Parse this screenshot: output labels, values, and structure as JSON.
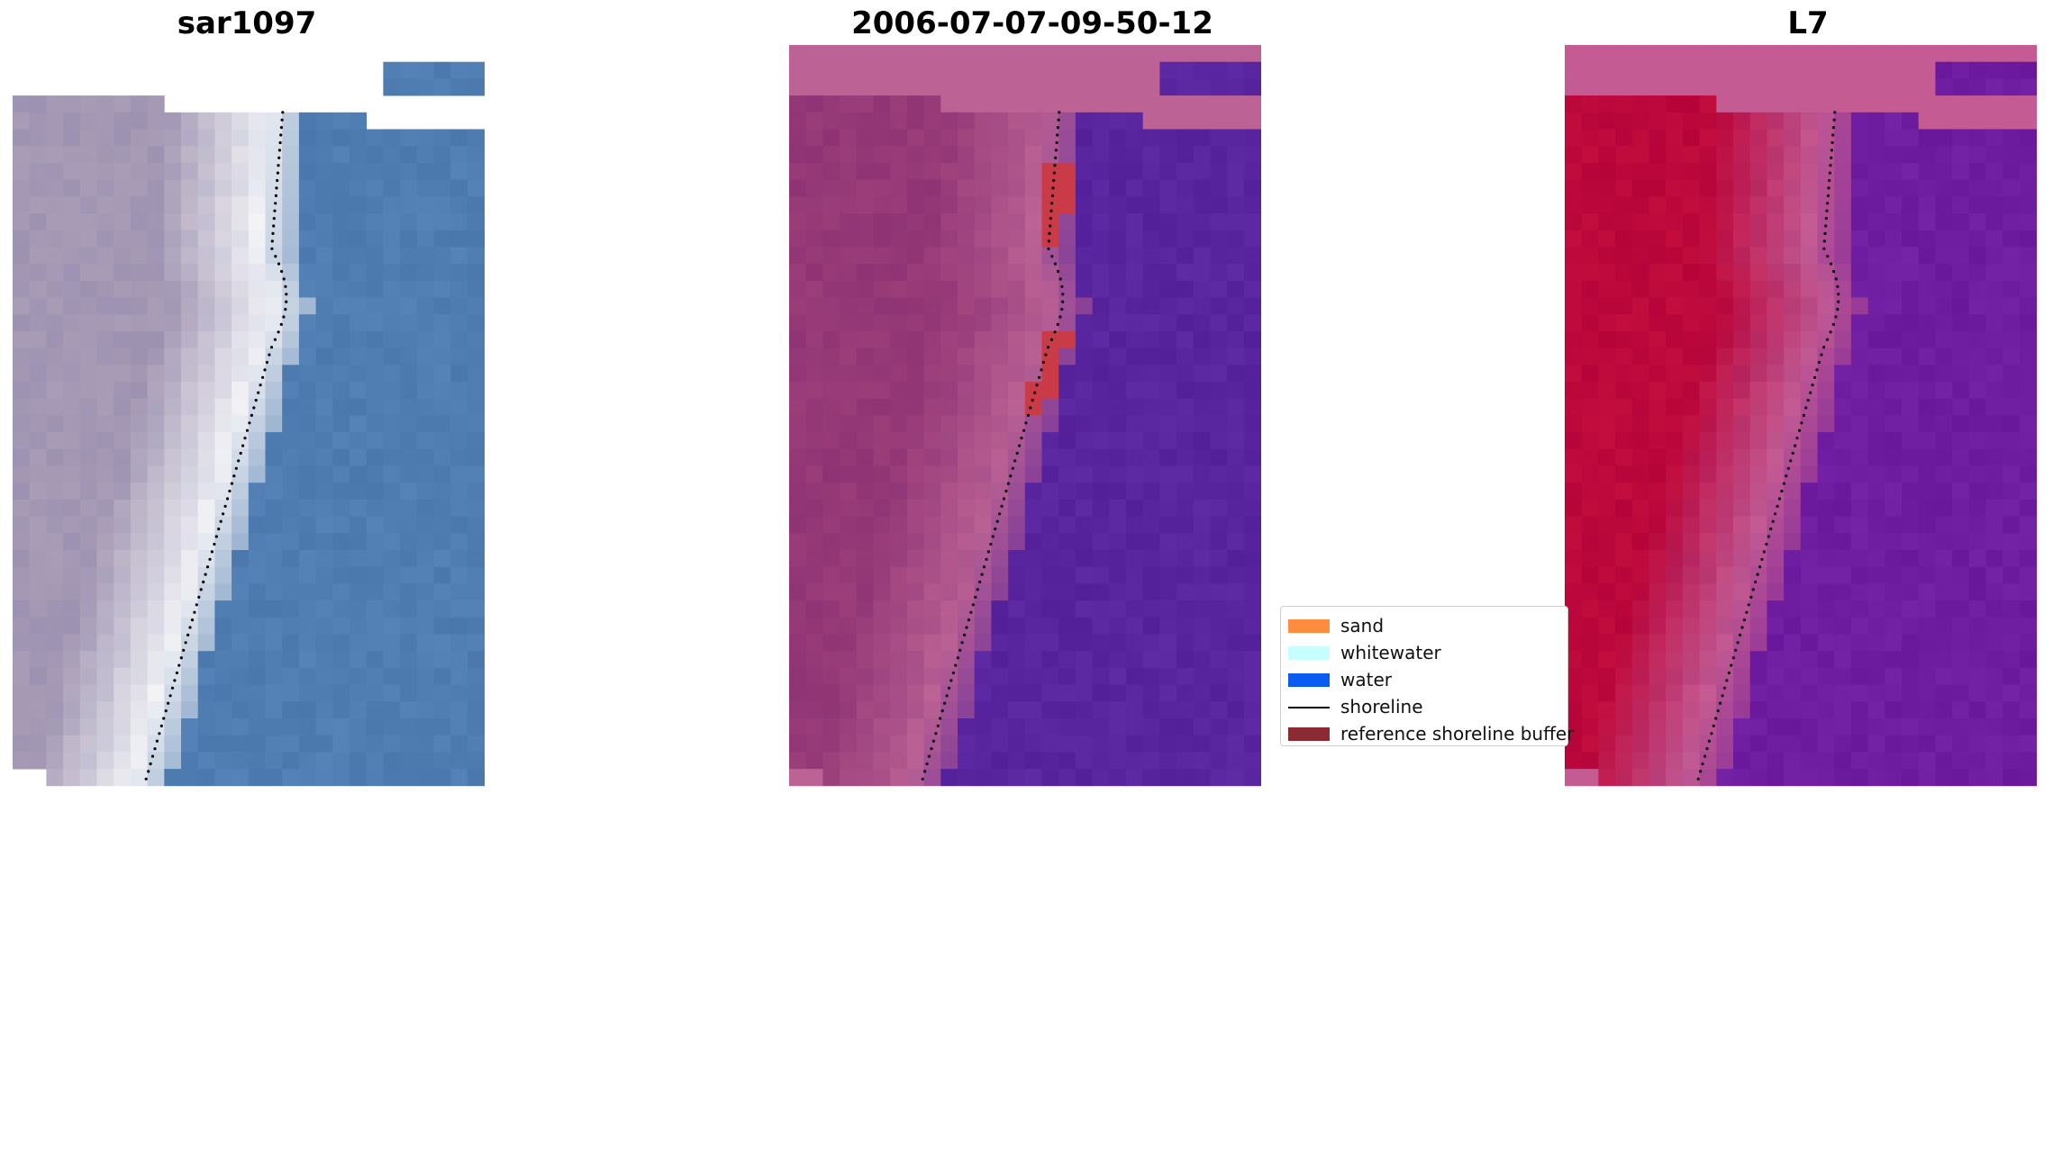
{
  "panels": [
    {
      "id": "rgb",
      "title": "sar1097",
      "mode": "rgb"
    },
    {
      "id": "classified",
      "title": "2006-07-07-09-50-12",
      "mode": "classified"
    },
    {
      "id": "index",
      "title": "L7",
      "mode": "index"
    }
  ],
  "legend": {
    "items": [
      {
        "label": "sand",
        "color": "#ff8c3f",
        "kind": "patch"
      },
      {
        "label": "whitewater",
        "color": "#c7ffff",
        "kind": "patch"
      },
      {
        "label": "water",
        "color": "#0a5cf0",
        "kind": "patch"
      },
      {
        "label": "shoreline",
        "color": "#000000",
        "kind": "line"
      },
      {
        "label": "reference shoreline buffer",
        "color": "#8b2a33",
        "kind": "patch"
      }
    ]
  },
  "colors": {
    "rgb_water": "#4a78ad",
    "rgb_land": "#a99cb6",
    "rgb_white": "#f3f3f6",
    "class_water": "#54209a",
    "class_land": "#9b3d79",
    "class_pink": "#bc6294",
    "class_buffer": "#c93b46",
    "index_water": "#6a189b",
    "index_land": "#c20d3e",
    "index_pink": "#c45b93"
  }
}
